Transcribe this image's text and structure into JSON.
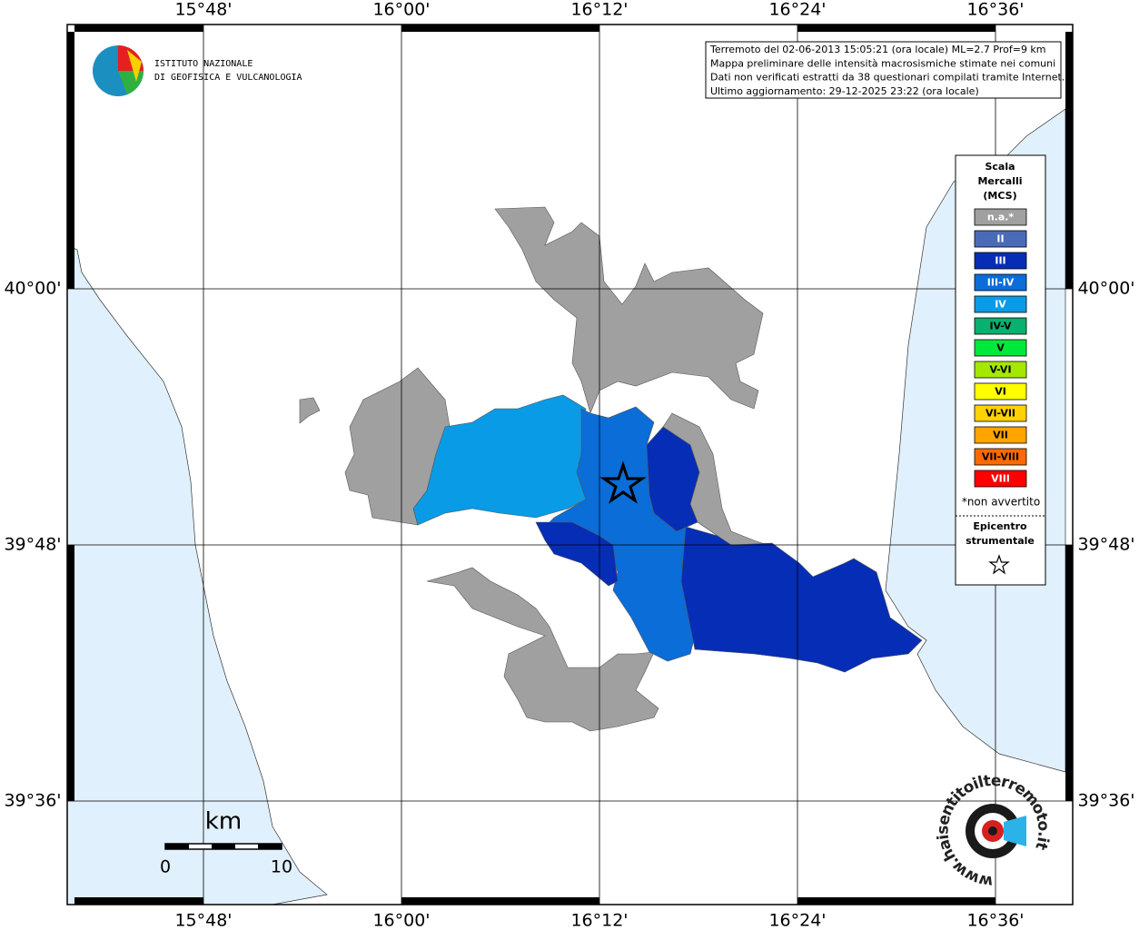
{
  "map": {
    "lon_labels": [
      "15°48'",
      "16°00'",
      "16°12'",
      "16°24'",
      "16°36'"
    ],
    "lat_labels": [
      "40°00'",
      "39°48'",
      "39°36'"
    ],
    "logo": {
      "line1": "ISTITUTO NAZIONALE",
      "line2": "DI GEOFISICA E VULCANOLOGIA"
    },
    "info": [
      "Terremoto del 02-06-2013 15:05:21 (ora locale) ML=2.7 Prof=9 km",
      "Mappa preliminare delle intensità macrosismiche stimate nei comuni",
      "Dati non verificati estratti da 38 questionari compilati tramite Internet.",
      "Ultimo aggiornamento: 29-12-2025 23:22 (ora locale)"
    ],
    "legend": {
      "title": [
        "Scala",
        "Mercalli",
        "(MCS)"
      ],
      "entries": [
        {
          "label": "n.a.*",
          "color": "#a0a0a0",
          "text_color": "#ffffff"
        },
        {
          "label": "II",
          "color": "#4a6cb8",
          "text_color": "#ffffff"
        },
        {
          "label": "III",
          "color": "#062db6",
          "text_color": "#ffffff"
        },
        {
          "label": "III-IV",
          "color": "#0a6dd8",
          "text_color": "#ffffff"
        },
        {
          "label": "IV",
          "color": "#099be6",
          "text_color": "#ffffff"
        },
        {
          "label": "IV-V",
          "color": "#0ab070",
          "text_color": "#000000"
        },
        {
          "label": "V",
          "color": "#00e83a",
          "text_color": "#000000"
        },
        {
          "label": "V-VI",
          "color": "#a4e800",
          "text_color": "#000000"
        },
        {
          "label": "VI",
          "color": "#ffff00",
          "text_color": "#000000"
        },
        {
          "label": "VI-VII",
          "color": "#ffd200",
          "text_color": "#000000"
        },
        {
          "label": "VII",
          "color": "#ffa400",
          "text_color": "#000000"
        },
        {
          "label": "VII-VIII",
          "color": "#ff6a00",
          "text_color": "#000000"
        },
        {
          "label": "VIII",
          "color": "#ff0000",
          "text_color": "#ffffff"
        }
      ],
      "note": "*non avvertito",
      "epicenter": [
        "Epicentro",
        "strumentale"
      ]
    },
    "scale_bar": {
      "unit": "km",
      "start": "0",
      "end": "10"
    },
    "watermark": "www.haisentitoilterremoto.it"
  }
}
